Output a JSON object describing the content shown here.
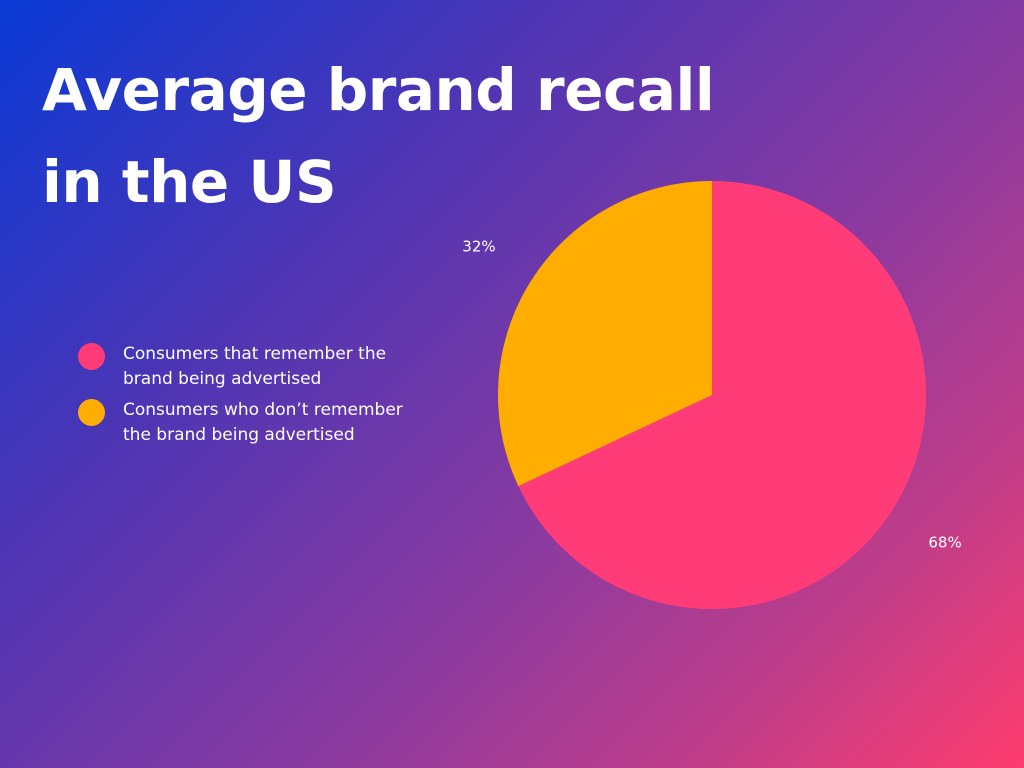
{
  "chart_data": {
    "type": "pie",
    "title_lines": [
      "Average brand recall",
      "in the US"
    ],
    "slices": [
      {
        "label": "Consumers that remember the brand being advertised",
        "value": 68,
        "value_label": "68%",
        "color": "#ff3c78"
      },
      {
        "label": "Consumers who don’t remember the brand being advertised",
        "value": 32,
        "value_label": "32%",
        "color": "#ffad00"
      }
    ],
    "legend_position": "left",
    "start_angle": "12 o'clock",
    "direction": "clockwise"
  }
}
